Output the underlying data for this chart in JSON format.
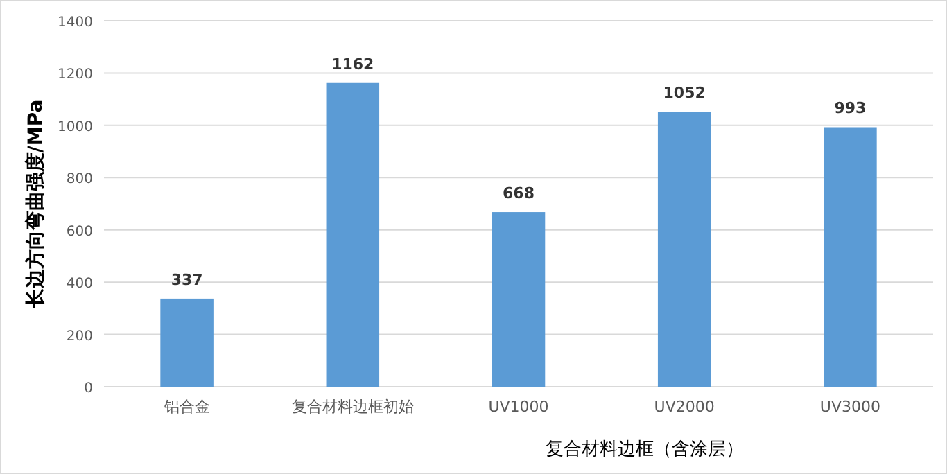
{
  "chart_data": {
    "type": "bar",
    "xlabel": "复合材料边框（含涂层）",
    "ylabel": "长边方向弯曲强度/MPa",
    "categories": [
      "铝合金",
      "复合材料边框初始",
      "UV1000",
      "UV2000",
      "UV3000"
    ],
    "values": [
      337,
      1162,
      668,
      1052,
      993
    ],
    "color": "#5b9bd5",
    "ylim": [
      0,
      1400
    ],
    "yticks": [
      0,
      200,
      400,
      600,
      800,
      1000,
      1200,
      1400
    ],
    "grid": "y",
    "data_labels": true
  }
}
